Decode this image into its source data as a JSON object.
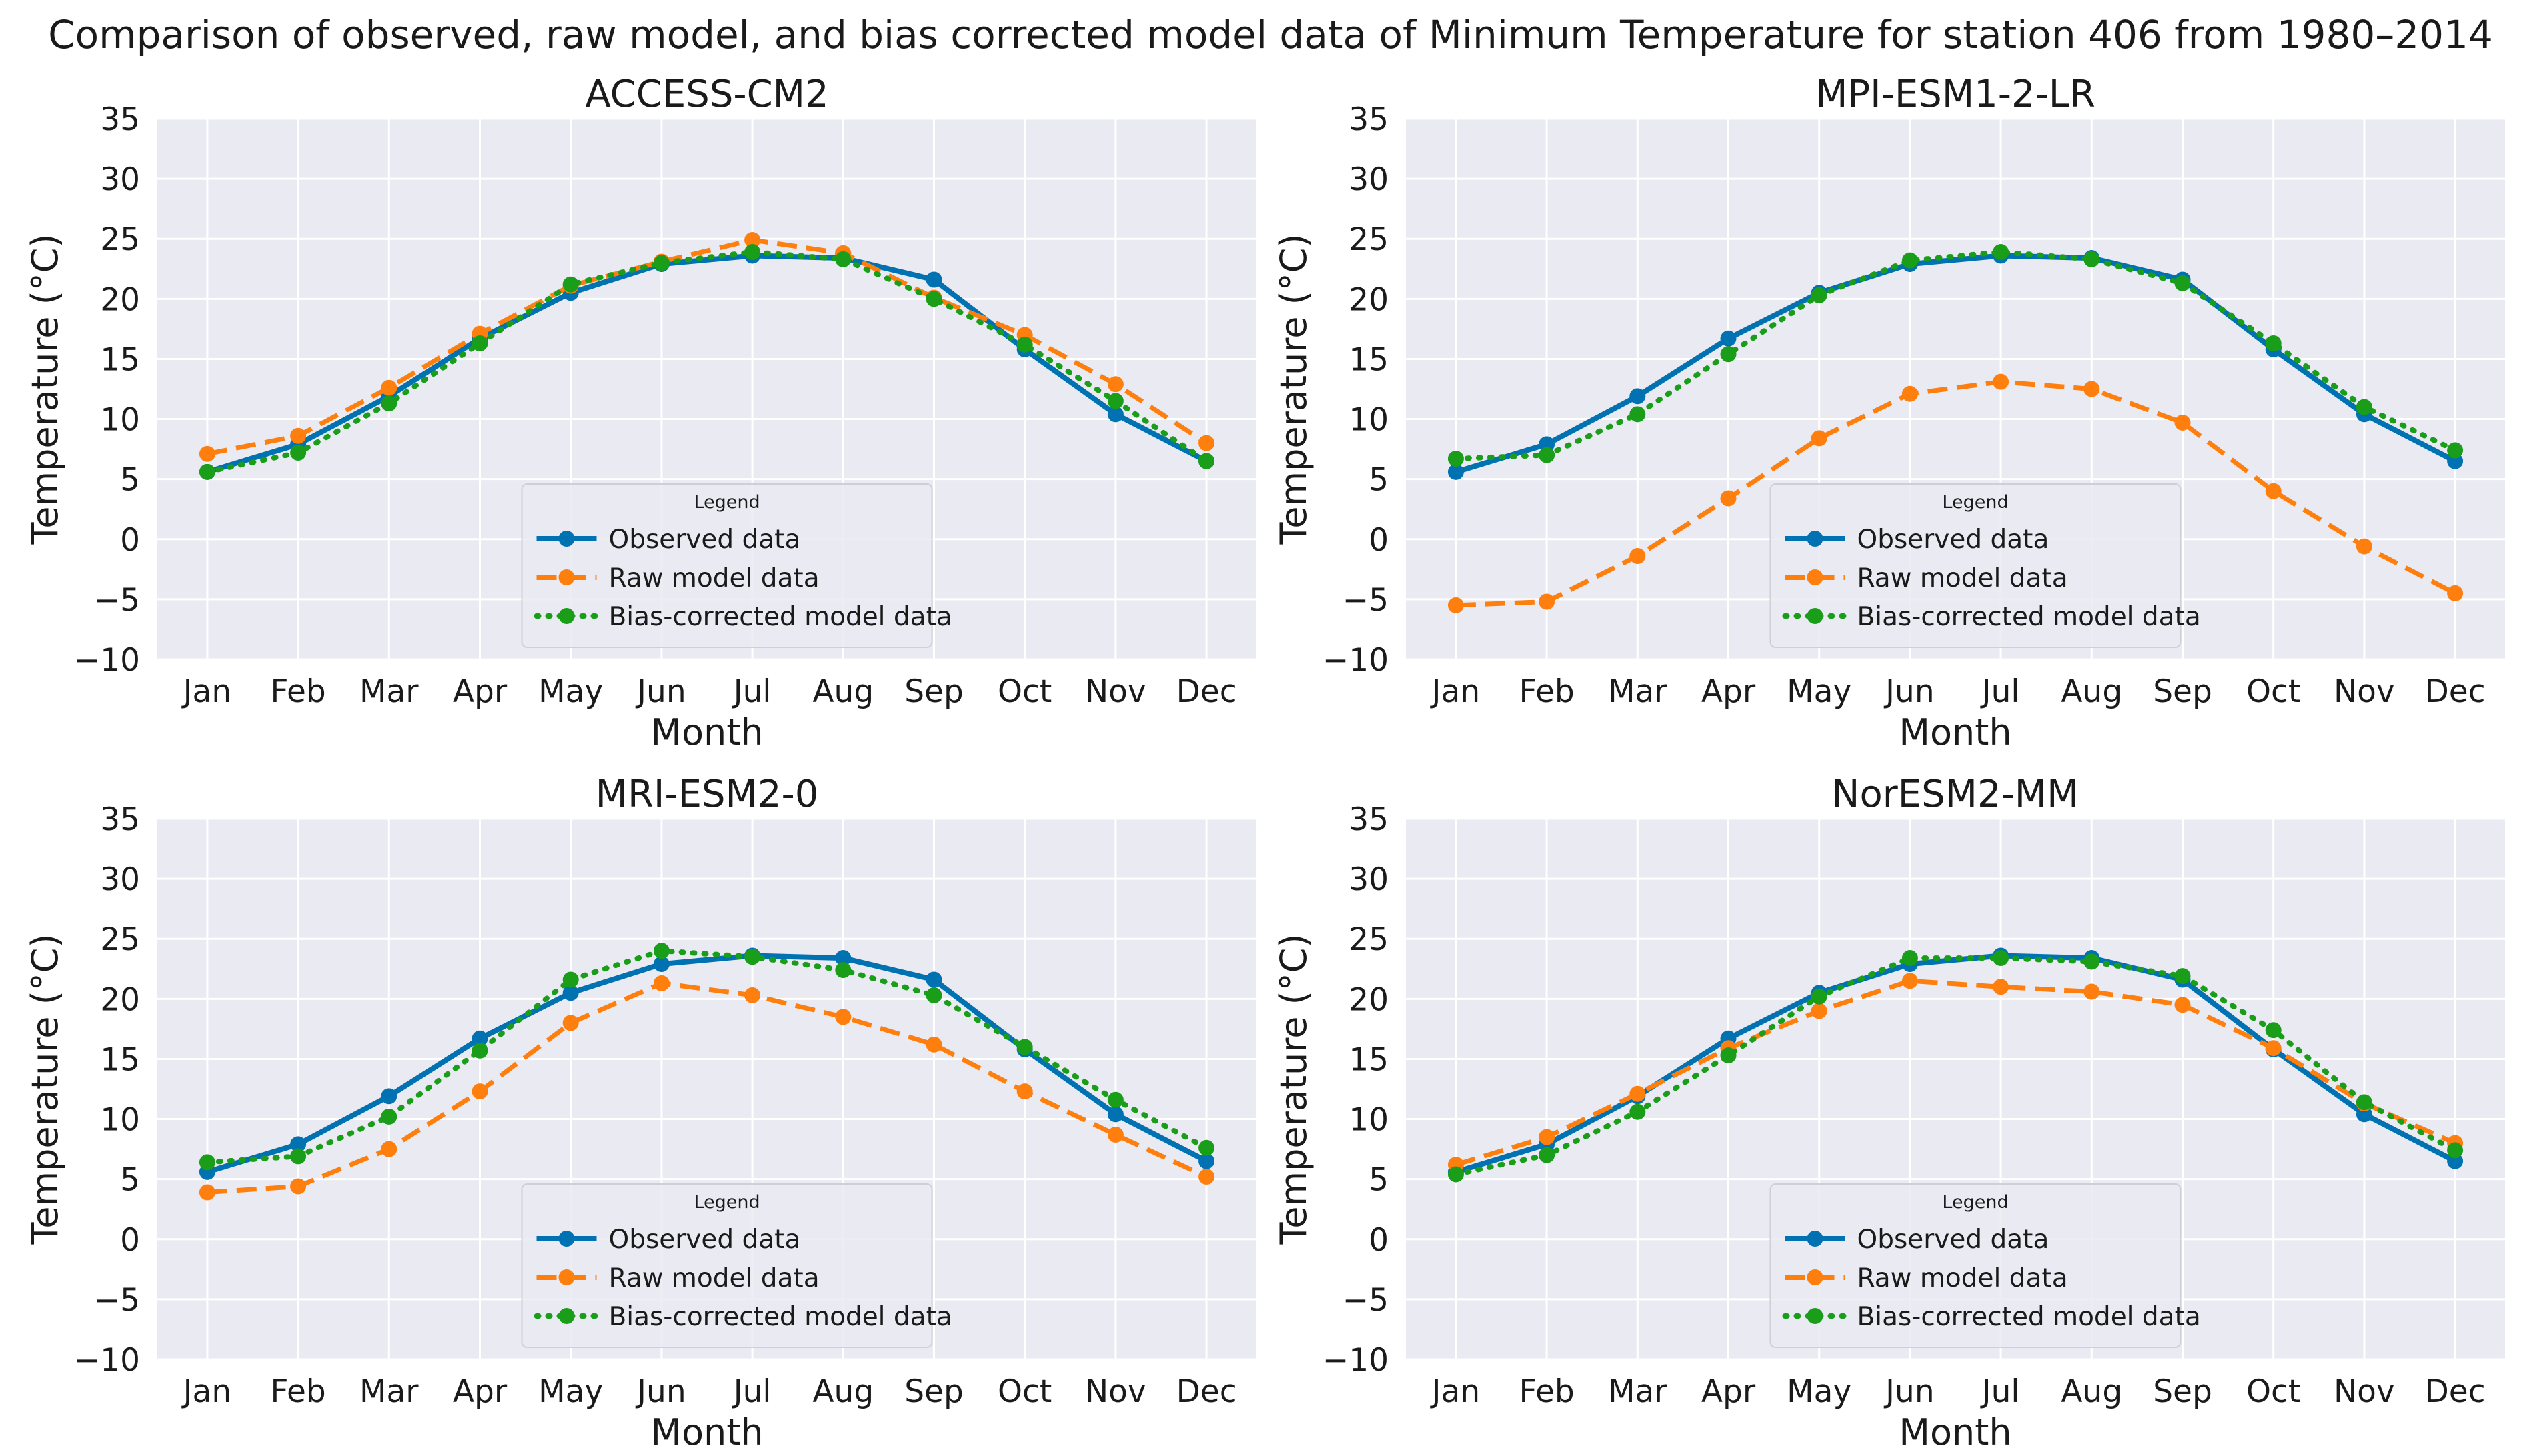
{
  "title": "Comparison of observed, raw model, and bias corrected model data of Minimum Temperature for station 406 from 1980–2014",
  "colors": {
    "observed": "#0072b2",
    "raw": "#ff7f0e",
    "corrected": "#1a9e1a",
    "panel_bg": "#eaeaf2",
    "grid": "#ffffff",
    "text": "#1a1a1a"
  },
  "chart_data": [
    {
      "type": "line",
      "title": "ACCESS-CM2",
      "xlabel": "Month",
      "ylabel": "Temperature (°C)",
      "ylim": [
        -10,
        35
      ],
      "yticks": [
        "−10",
        "−5",
        "0",
        "5",
        "10",
        "15",
        "20",
        "25",
        "30",
        "35"
      ],
      "categories": [
        "Jan",
        "Feb",
        "Mar",
        "Apr",
        "May",
        "Jun",
        "Jul",
        "Aug",
        "Sep",
        "Oct",
        "Nov",
        "Dec"
      ],
      "legend": {
        "title": "Legend",
        "position": "lower-center"
      },
      "series": [
        {
          "name": "Observed data",
          "style": "solid",
          "values": [
            5.6,
            7.9,
            11.9,
            16.7,
            20.5,
            22.9,
            23.6,
            23.4,
            21.6,
            15.8,
            10.4,
            6.5
          ]
        },
        {
          "name": "Raw model data",
          "style": "dashed",
          "values": [
            7.1,
            8.6,
            12.6,
            17.1,
            21.1,
            23.1,
            24.9,
            23.8,
            20.1,
            17.0,
            12.9,
            8.0
          ]
        },
        {
          "name": "Bias-corrected model data",
          "style": "dotted",
          "values": [
            5.6,
            7.2,
            11.3,
            16.3,
            21.2,
            23.0,
            23.9,
            23.3,
            20.0,
            16.2,
            11.5,
            6.5
          ]
        }
      ]
    },
    {
      "type": "line",
      "title": "MPI-ESM1-2-LR",
      "xlabel": "Month",
      "ylabel": "Temperature (°C)",
      "ylim": [
        -10,
        35
      ],
      "yticks": [
        "−10",
        "−5",
        "0",
        "5",
        "10",
        "15",
        "20",
        "25",
        "30",
        "35"
      ],
      "categories": [
        "Jan",
        "Feb",
        "Mar",
        "Apr",
        "May",
        "Jun",
        "Jul",
        "Aug",
        "Sep",
        "Oct",
        "Nov",
        "Dec"
      ],
      "legend": {
        "title": "Legend",
        "position": "lower-center"
      },
      "series": [
        {
          "name": "Observed data",
          "style": "solid",
          "values": [
            5.6,
            7.9,
            11.9,
            16.7,
            20.5,
            22.9,
            23.6,
            23.4,
            21.6,
            15.8,
            10.4,
            6.5
          ]
        },
        {
          "name": "Raw model data",
          "style": "dashed",
          "values": [
            -5.5,
            -5.2,
            -1.4,
            3.4,
            8.4,
            12.1,
            13.1,
            12.5,
            9.7,
            4.0,
            -0.6,
            -4.5
          ]
        },
        {
          "name": "Bias-corrected model data",
          "style": "dotted",
          "values": [
            6.7,
            7.0,
            10.4,
            15.4,
            20.3,
            23.2,
            23.9,
            23.3,
            21.3,
            16.3,
            11.0,
            7.4
          ]
        }
      ]
    },
    {
      "type": "line",
      "title": "MRI-ESM2-0",
      "xlabel": "Month",
      "ylabel": "Temperature (°C)",
      "ylim": [
        -10,
        35
      ],
      "yticks": [
        "−10",
        "−5",
        "0",
        "5",
        "10",
        "15",
        "20",
        "25",
        "30",
        "35"
      ],
      "categories": [
        "Jan",
        "Feb",
        "Mar",
        "Apr",
        "May",
        "Jun",
        "Jul",
        "Aug",
        "Sep",
        "Oct",
        "Nov",
        "Dec"
      ],
      "legend": {
        "title": "Legend",
        "position": "lower-center"
      },
      "series": [
        {
          "name": "Observed data",
          "style": "solid",
          "values": [
            5.6,
            7.9,
            11.9,
            16.7,
            20.5,
            22.9,
            23.6,
            23.4,
            21.6,
            15.8,
            10.4,
            6.5
          ]
        },
        {
          "name": "Raw model data",
          "style": "dashed",
          "values": [
            3.9,
            4.4,
            7.5,
            12.3,
            18.0,
            21.3,
            20.3,
            18.5,
            16.2,
            12.3,
            8.7,
            5.2
          ]
        },
        {
          "name": "Bias-corrected model data",
          "style": "dotted",
          "values": [
            6.4,
            6.9,
            10.2,
            15.7,
            21.6,
            24.0,
            23.5,
            22.4,
            20.3,
            16.0,
            11.6,
            7.6
          ]
        }
      ]
    },
    {
      "type": "line",
      "title": "NorESM2-MM",
      "xlabel": "Month",
      "ylabel": "Temperature (°C)",
      "ylim": [
        -10,
        35
      ],
      "yticks": [
        "−10",
        "−5",
        "0",
        "5",
        "10",
        "15",
        "20",
        "25",
        "30",
        "35"
      ],
      "categories": [
        "Jan",
        "Feb",
        "Mar",
        "Apr",
        "May",
        "Jun",
        "Jul",
        "Aug",
        "Sep",
        "Oct",
        "Nov",
        "Dec"
      ],
      "legend": {
        "title": "Legend",
        "position": "lower-center"
      },
      "series": [
        {
          "name": "Observed data",
          "style": "solid",
          "values": [
            5.6,
            7.9,
            11.9,
            16.7,
            20.5,
            22.9,
            23.6,
            23.4,
            21.6,
            15.8,
            10.4,
            6.5
          ]
        },
        {
          "name": "Raw model data",
          "style": "dashed",
          "values": [
            6.2,
            8.5,
            12.1,
            15.9,
            19.0,
            21.5,
            21.0,
            20.6,
            19.5,
            15.9,
            11.3,
            8.0
          ]
        },
        {
          "name": "Bias-corrected model data",
          "style": "dotted",
          "values": [
            5.4,
            7.0,
            10.6,
            15.3,
            20.2,
            23.4,
            23.4,
            23.1,
            21.9,
            17.4,
            11.4,
            7.4
          ]
        }
      ]
    }
  ]
}
